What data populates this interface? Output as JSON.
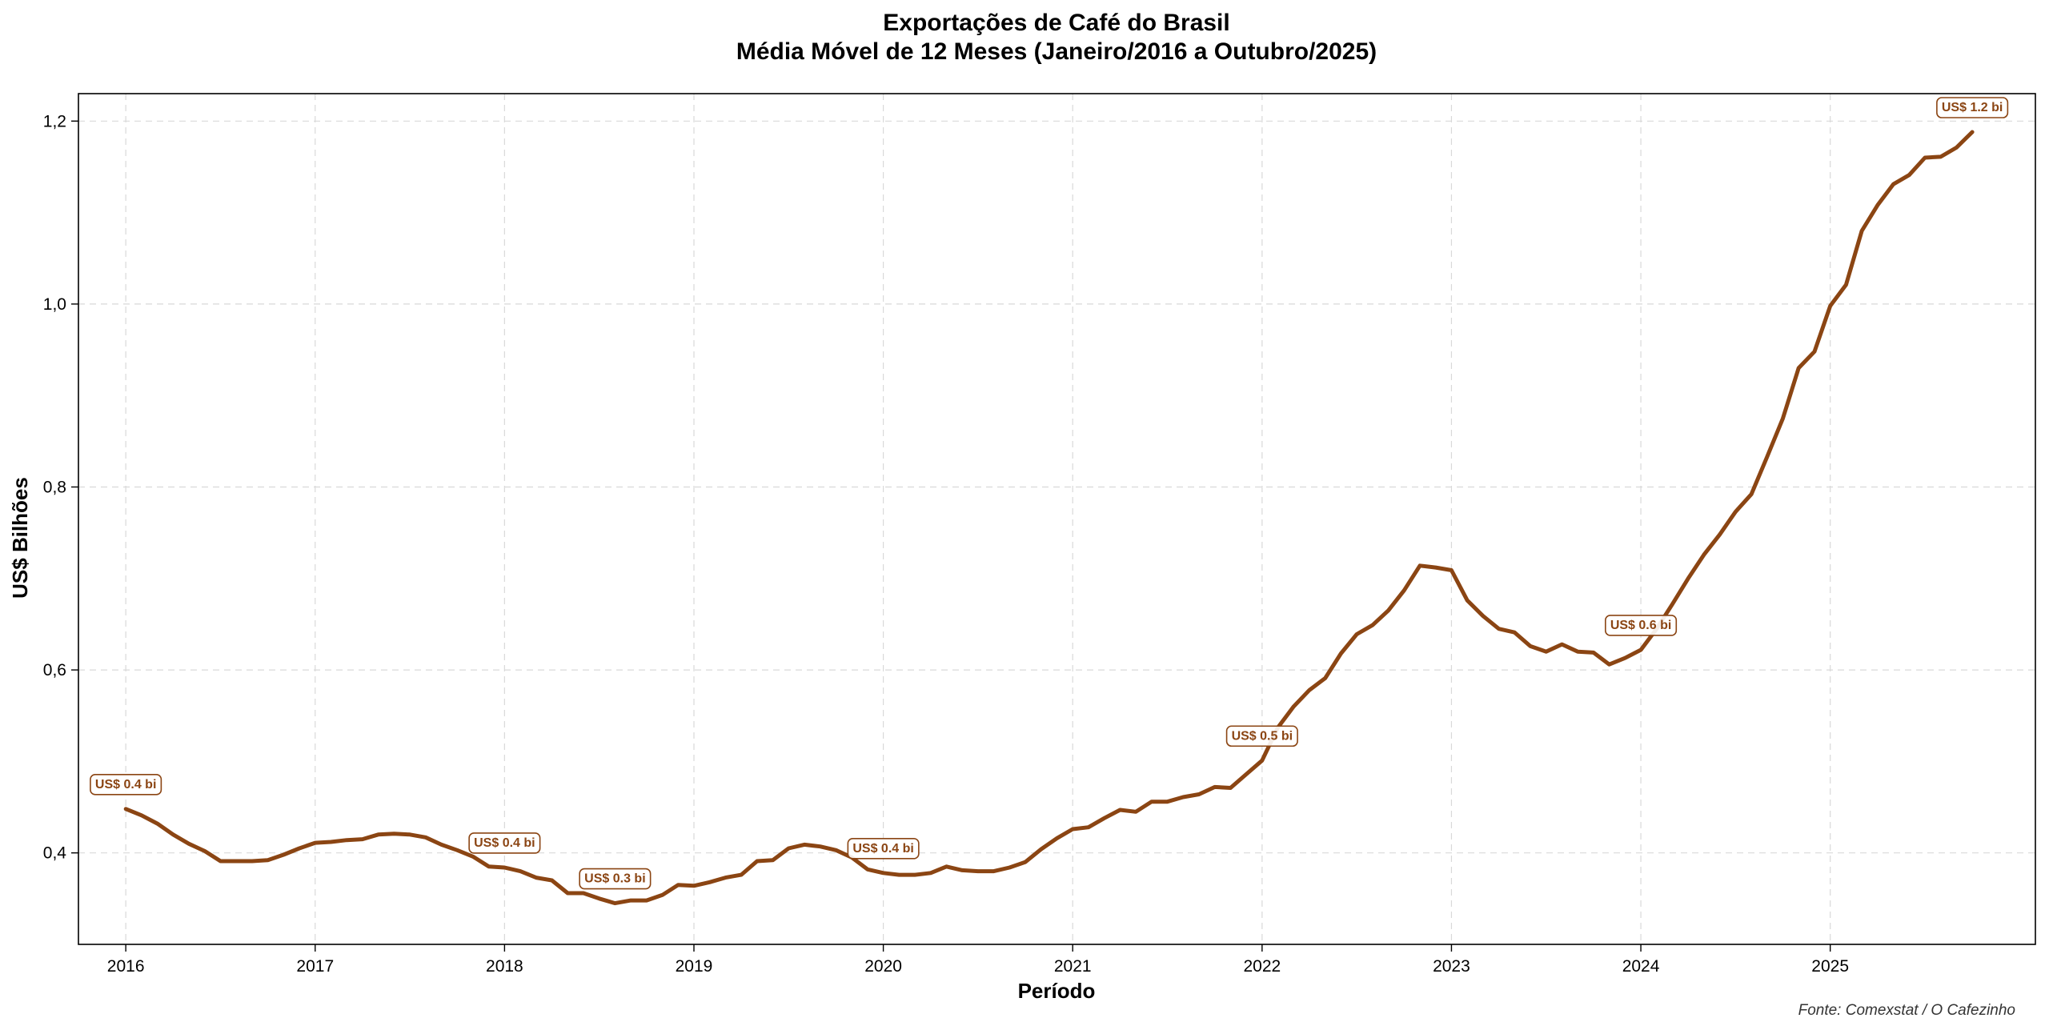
{
  "chart_data": {
    "type": "line",
    "title": "Exportações de Café do Brasil",
    "subtitle": "Média Móvel de 12 Meses (Janeiro/2016 a Outubro/2025)",
    "xlabel": "Período",
    "ylabel": "US$ Bilhões",
    "source": "Fonte: Comexstat / O Cafezinho",
    "xlim": [
      "2015-10",
      "2026-02"
    ],
    "ylim": [
      0.3,
      1.23
    ],
    "grid": true,
    "x_ticks": [
      {
        "date": "2016-01",
        "label": "2016"
      },
      {
        "date": "2017-01",
        "label": "2017"
      },
      {
        "date": "2018-01",
        "label": "2018"
      },
      {
        "date": "2019-01",
        "label": "2019"
      },
      {
        "date": "2020-01",
        "label": "2020"
      },
      {
        "date": "2021-01",
        "label": "2021"
      },
      {
        "date": "2022-01",
        "label": "2022"
      },
      {
        "date": "2023-01",
        "label": "2023"
      },
      {
        "date": "2024-01",
        "label": "2024"
      },
      {
        "date": "2025-01",
        "label": "2025"
      }
    ],
    "y_ticks": [
      {
        "value": 0.4,
        "label": "0,4"
      },
      {
        "value": 0.6,
        "label": "0,6"
      },
      {
        "value": 0.8,
        "label": "0,8"
      },
      {
        "value": 1.0,
        "label": "1,0"
      },
      {
        "value": 1.2,
        "label": "1,2"
      }
    ],
    "line_color": "#8B4513",
    "series": [
      {
        "x_start": "2016-01",
        "values": [
          0.448,
          0.441,
          0.432,
          0.42,
          0.41,
          0.402,
          0.391,
          0.391,
          0.391,
          0.392,
          0.398,
          0.405,
          0.411,
          0.412,
          0.414,
          0.415,
          0.42,
          0.421,
          0.42,
          0.417,
          0.409,
          0.403,
          0.396,
          0.385,
          0.384,
          0.38,
          0.373,
          0.37,
          0.356,
          0.356,
          0.35,
          0.345,
          0.348,
          0.348,
          0.354,
          0.365,
          0.364,
          0.368,
          0.373,
          0.376,
          0.391,
          0.392,
          0.405,
          0.409,
          0.407,
          0.403,
          0.395,
          0.382,
          0.378,
          0.376,
          0.376,
          0.378,
          0.385,
          0.381,
          0.38,
          0.38,
          0.384,
          0.39,
          0.404,
          0.416,
          0.426,
          0.428,
          0.438,
          0.447,
          0.445,
          0.456,
          0.456,
          0.461,
          0.464,
          0.472,
          0.471,
          0.486,
          0.501,
          0.537,
          0.56,
          0.578,
          0.591,
          0.618,
          0.639,
          0.649,
          0.665,
          0.687,
          0.714,
          0.712,
          0.709,
          0.676,
          0.659,
          0.645,
          0.641,
          0.626,
          0.62,
          0.628,
          0.62,
          0.619,
          0.606,
          0.613,
          0.622,
          0.645,
          0.672,
          0.7,
          0.726,
          0.748,
          0.773,
          0.792,
          0.833,
          0.875,
          0.93,
          0.948,
          0.998,
          1.021,
          1.08,
          1.108,
          1.131,
          1.141,
          1.16,
          1.161,
          1.171,
          1.188
        ]
      }
    ],
    "annotations": [
      {
        "date": "2016-01",
        "value": 0.448,
        "text": "US$ 0.4 bi"
      },
      {
        "date": "2018-01",
        "value": 0.384,
        "text": "US$ 0.4 bi"
      },
      {
        "date": "2018-08",
        "value": 0.345,
        "text": "US$ 0.3 bi"
      },
      {
        "date": "2020-01",
        "value": 0.378,
        "text": "US$ 0.4 bi"
      },
      {
        "date": "2022-01",
        "value": 0.501,
        "text": "US$ 0.5 bi"
      },
      {
        "date": "2024-01",
        "value": 0.622,
        "text": "US$ 0.6 bi"
      },
      {
        "date": "2025-10",
        "value": 1.188,
        "text": "US$ 1.2 bi"
      }
    ]
  }
}
